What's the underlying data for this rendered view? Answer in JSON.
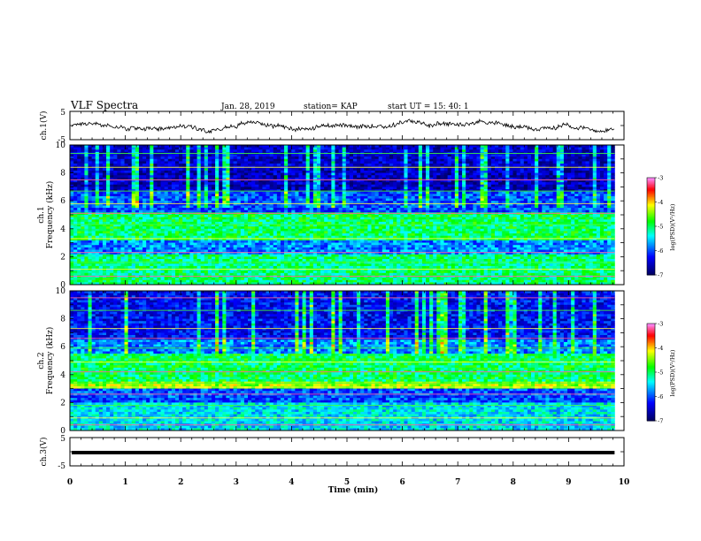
{
  "header": {
    "title": "VLF Spectra",
    "date": "Jan. 28, 2019",
    "station": "station= KAP",
    "start_time": "start UT =  15: 40: 1"
  },
  "chart_data": [
    {
      "type": "line",
      "ylabel": "ch.1(V)",
      "ylim": [
        -5,
        5
      ],
      "yticks": [
        "5",
        "-5"
      ],
      "xlim": [
        0,
        10
      ],
      "waveform_approx_level": [
        0,
        0.5
      ]
    },
    {
      "type": "heatmap",
      "ylabel": "ch.1\nFrequency (kHz)",
      "ylabel_lines": [
        "ch.1",
        "Frequency (kHz)"
      ],
      "ylim": [
        0,
        10
      ],
      "yticks": [
        "0",
        "2",
        "4",
        "6",
        "8",
        "10"
      ],
      "xlim": [
        0,
        10
      ],
      "data_end_min": 9.83,
      "colorbar": {
        "label": "log(PSD)(V²/Hz)",
        "min": -7,
        "max": -3,
        "ticks": [
          "-3",
          "-4",
          "-5",
          "-6",
          "-7"
        ]
      }
    },
    {
      "type": "heatmap",
      "ylabel": "ch.2\nFrequency (kHz)",
      "ylabel_lines": [
        "ch.2",
        "Frequency (kHz)"
      ],
      "ylim": [
        0,
        10
      ],
      "yticks": [
        "0",
        "2",
        "4",
        "6",
        "8",
        "10"
      ],
      "xlim": [
        0,
        10
      ],
      "data_end_min": 9.83,
      "colorbar": {
        "label": "log(PSD)(V²/Hz)",
        "min": -7,
        "max": -3,
        "ticks": [
          "-3",
          "-4",
          "-5",
          "-6",
          "-7"
        ]
      }
    },
    {
      "type": "line",
      "ylabel": "ch.3(V)",
      "ylim": [
        -5,
        5
      ],
      "yticks": [
        "5",
        "-5"
      ],
      "xlim": [
        0,
        10
      ],
      "constant_level": 0
    }
  ],
  "xaxis": {
    "label": "Time (min)",
    "ticks": [
      "0",
      "1",
      "2",
      "3",
      "4",
      "5",
      "6",
      "7",
      "8",
      "9",
      "10"
    ]
  },
  "colors": {
    "dark": "#000080",
    "blue": "#0000ff",
    "cyan": "#00ffff",
    "green": "#00ff00",
    "yellow": "#ffff00",
    "red": "#ff0000",
    "magenta": "#ff80ff"
  }
}
